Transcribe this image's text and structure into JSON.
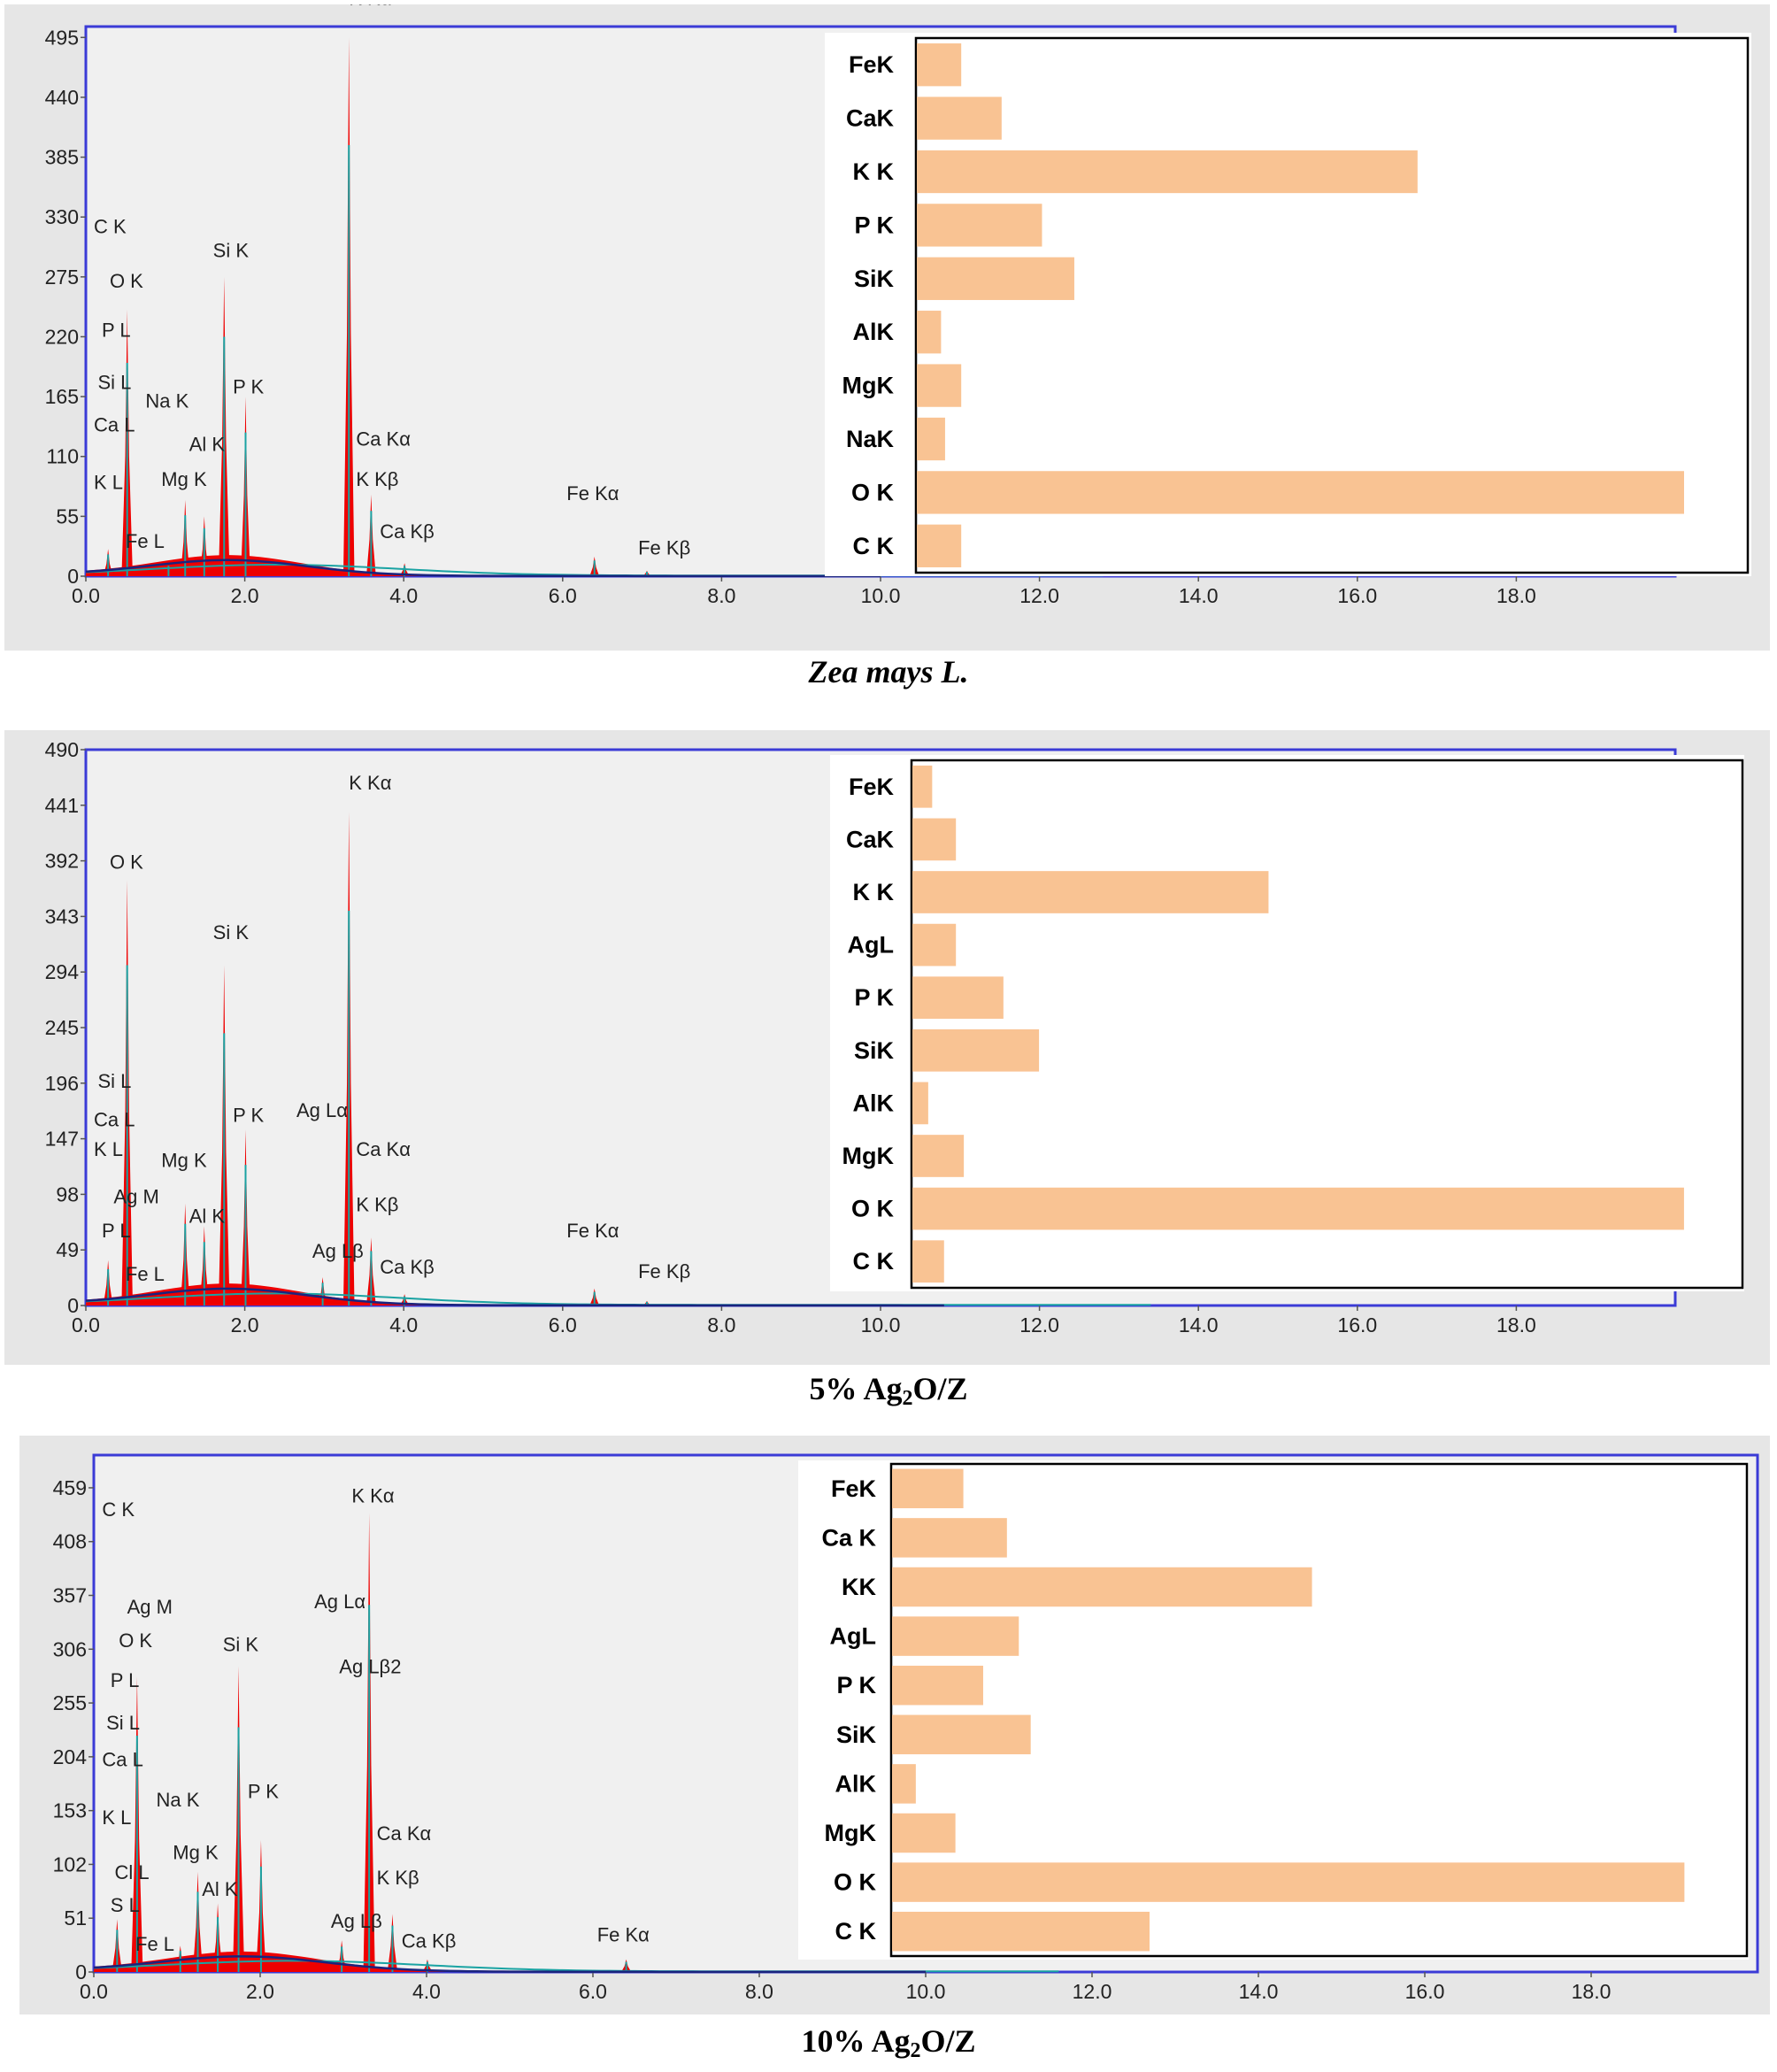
{
  "colors": {
    "accent_blue": "#3b3bd6",
    "bar_fill": "#f9c393",
    "spectrum_red": "#ee0000",
    "teal": "#1aa3a3",
    "navy": "#1a237e",
    "plot_bg": "#f0f0f0",
    "panel_bg": "#e6e6e6"
  },
  "captions": [
    {
      "text": "Zea mays L."
    },
    {
      "prefix": "5% Ag",
      "sub": "2",
      "suffix": "O/Z"
    },
    {
      "prefix": "10% Ag",
      "sub": "2",
      "suffix": "O/Z"
    }
  ],
  "chart_data": [
    {
      "type": "line",
      "title": "Zea mays L.",
      "xlabel": "",
      "ylabel": "",
      "xlim": [
        0,
        20
      ],
      "ylim": [
        0,
        505
      ],
      "x_ticks": [
        "0.0",
        "2.0",
        "4.0",
        "6.0",
        "8.0",
        "10.0",
        "12.0",
        "14.0",
        "16.0",
        "18.0"
      ],
      "y_ticks": [
        0,
        55,
        110,
        165,
        220,
        275,
        330,
        385,
        440,
        495
      ],
      "peaks": [
        {
          "x": 0.28,
          "y": 25
        },
        {
          "x": 0.52,
          "y": 245
        },
        {
          "x": 1.04,
          "y": 12
        },
        {
          "x": 1.25,
          "y": 70
        },
        {
          "x": 1.49,
          "y": 55
        },
        {
          "x": 1.74,
          "y": 275
        },
        {
          "x": 2.01,
          "y": 165
        },
        {
          "x": 3.31,
          "y": 495
        },
        {
          "x": 3.59,
          "y": 75
        },
        {
          "x": 4.01,
          "y": 12
        },
        {
          "x": 6.4,
          "y": 18
        },
        {
          "x": 7.06,
          "y": 5
        }
      ],
      "peak_labels": [
        {
          "text": "K  Kα",
          "x": 3.31,
          "y": 525
        },
        {
          "text": "C  K",
          "x": 0.1,
          "y": 315
        },
        {
          "text": "O  K",
          "x": 0.3,
          "y": 265
        },
        {
          "text": "Si K",
          "x": 1.6,
          "y": 293
        },
        {
          "text": "P  L",
          "x": 0.2,
          "y": 220
        },
        {
          "text": "Si L",
          "x": 0.15,
          "y": 172
        },
        {
          "text": "Na K",
          "x": 0.75,
          "y": 155
        },
        {
          "text": "P  K",
          "x": 1.85,
          "y": 168
        },
        {
          "text": "Ca L",
          "x": 0.1,
          "y": 133
        },
        {
          "text": "Al K",
          "x": 1.3,
          "y": 115
        },
        {
          "text": "Ca Kα",
          "x": 3.4,
          "y": 120
        },
        {
          "text": "K  L",
          "x": 0.1,
          "y": 80
        },
        {
          "text": "Mg K",
          "x": 0.95,
          "y": 83
        },
        {
          "text": "K  Kβ",
          "x": 3.4,
          "y": 83
        },
        {
          "text": "Fe Kα",
          "x": 6.05,
          "y": 70
        },
        {
          "text": "Ca Kβ",
          "x": 3.7,
          "y": 35
        },
        {
          "text": "Fe L",
          "x": 0.5,
          "y": 26
        },
        {
          "text": "Fe Kβ",
          "x": 6.95,
          "y": 20
        }
      ],
      "baseline_ends": {
        "navy": 10.0,
        "teal": 12.8
      },
      "bar_inset": {
        "type": "bar",
        "orientation": "horizontal",
        "categories": [
          "FeK",
          "CaK",
          "K K",
          "P K",
          "SiK",
          "AlK",
          "MgK",
          "NaK",
          "O K",
          "C K"
        ],
        "values": [
          0.55,
          1.05,
          6.2,
          1.55,
          1.95,
          0.3,
          0.55,
          0.35,
          9.5,
          0.55
        ],
        "xlim": [
          0,
          10.3
        ]
      }
    },
    {
      "type": "line",
      "title": "5% Ag2O/Z",
      "xlabel": "",
      "ylabel": "",
      "xlim": [
        0,
        20
      ],
      "ylim": [
        0,
        490
      ],
      "x_ticks": [
        "0.0",
        "2.0",
        "4.0",
        "6.0",
        "8.0",
        "10.0",
        "12.0",
        "14.0",
        "16.0",
        "18.0"
      ],
      "y_ticks": [
        0,
        49,
        98,
        147,
        196,
        245,
        294,
        343,
        392,
        441,
        490
      ],
      "peaks": [
        {
          "x": 0.28,
          "y": 40
        },
        {
          "x": 0.52,
          "y": 375
        },
        {
          "x": 1.25,
          "y": 90
        },
        {
          "x": 1.49,
          "y": 70
        },
        {
          "x": 1.74,
          "y": 300
        },
        {
          "x": 2.01,
          "y": 155
        },
        {
          "x": 2.98,
          "y": 25
        },
        {
          "x": 3.31,
          "y": 435
        },
        {
          "x": 3.59,
          "y": 60
        },
        {
          "x": 4.01,
          "y": 10
        },
        {
          "x": 6.4,
          "y": 15
        },
        {
          "x": 7.06,
          "y": 4
        }
      ],
      "peak_labels": [
        {
          "text": "K  Kα",
          "x": 3.31,
          "y": 455
        },
        {
          "text": "O  K",
          "x": 0.3,
          "y": 385
        },
        {
          "text": "Si K",
          "x": 1.6,
          "y": 323
        },
        {
          "text": "Si L",
          "x": 0.15,
          "y": 192
        },
        {
          "text": "Ag Lα",
          "x": 2.65,
          "y": 166
        },
        {
          "text": "P  K",
          "x": 1.85,
          "y": 162
        },
        {
          "text": "Ca L",
          "x": 0.1,
          "y": 158
        },
        {
          "text": "K  L",
          "x": 0.1,
          "y": 132
        },
        {
          "text": "Ca Kα",
          "x": 3.4,
          "y": 132
        },
        {
          "text": "Mg K",
          "x": 0.95,
          "y": 122
        },
        {
          "text": "Ag M",
          "x": 0.35,
          "y": 90
        },
        {
          "text": "K  Kβ",
          "x": 3.4,
          "y": 83
        },
        {
          "text": "Al K",
          "x": 1.3,
          "y": 73
        },
        {
          "text": "P  L",
          "x": 0.2,
          "y": 60
        },
        {
          "text": "Fe Kα",
          "x": 6.05,
          "y": 60
        },
        {
          "text": "Ag Lβ",
          "x": 2.85,
          "y": 42
        },
        {
          "text": "Ca Kβ",
          "x": 3.7,
          "y": 28
        },
        {
          "text": "Fe L",
          "x": 0.5,
          "y": 22
        },
        {
          "text": "Fe Kβ",
          "x": 6.95,
          "y": 24
        }
      ],
      "baseline_ends": {
        "navy": 10.8,
        "teal": 13.4
      },
      "bar_inset": {
        "type": "bar",
        "orientation": "horizontal",
        "categories": [
          "FeK",
          "CaK",
          "K K",
          "AgL",
          "P K",
          "SiK",
          "AlK",
          "MgK",
          "O K",
          "C K"
        ],
        "values": [
          0.25,
          0.55,
          4.5,
          0.55,
          1.15,
          1.6,
          0.2,
          0.65,
          9.75,
          0.4
        ],
        "xlim": [
          0,
          10.5
        ]
      }
    },
    {
      "type": "line",
      "title": "10% Ag2O/Z",
      "xlabel": "",
      "ylabel": "",
      "xlim": [
        0,
        20
      ],
      "ylim": [
        0,
        490
      ],
      "x_ticks": [
        "0.0",
        "2.0",
        "4.0",
        "6.0",
        "8.0",
        "10.0",
        "12.0",
        "14.0",
        "16.0",
        "18.0"
      ],
      "y_ticks": [
        0,
        51,
        102,
        153,
        204,
        255,
        306,
        357,
        408,
        459
      ],
      "peaks": [
        {
          "x": 0.28,
          "y": 50
        },
        {
          "x": 0.52,
          "y": 280
        },
        {
          "x": 1.04,
          "y": 25
        },
        {
          "x": 1.25,
          "y": 95
        },
        {
          "x": 1.49,
          "y": 65
        },
        {
          "x": 1.74,
          "y": 290
        },
        {
          "x": 2.01,
          "y": 125
        },
        {
          "x": 2.98,
          "y": 30
        },
        {
          "x": 3.31,
          "y": 435
        },
        {
          "x": 3.59,
          "y": 55
        },
        {
          "x": 4.01,
          "y": 12
        },
        {
          "x": 6.4,
          "y": 12
        }
      ],
      "peak_labels": [
        {
          "text": "C  K",
          "x": 0.1,
          "y": 432
        },
        {
          "text": "K  Kα",
          "x": 3.1,
          "y": 445
        },
        {
          "text": "Ag M",
          "x": 0.4,
          "y": 340
        },
        {
          "text": "Ag Lα",
          "x": 2.65,
          "y": 345
        },
        {
          "text": "O  K",
          "x": 0.3,
          "y": 308
        },
        {
          "text": "Si K",
          "x": 1.55,
          "y": 304
        },
        {
          "text": "Ag Lβ2",
          "x": 2.95,
          "y": 283
        },
        {
          "text": "P  L",
          "x": 0.2,
          "y": 270
        },
        {
          "text": "Si L",
          "x": 0.15,
          "y": 230
        },
        {
          "text": "Ca L",
          "x": 0.1,
          "y": 195
        },
        {
          "text": "P  K",
          "x": 1.85,
          "y": 165
        },
        {
          "text": "Na K",
          "x": 0.75,
          "y": 157
        },
        {
          "text": "K  L",
          "x": 0.1,
          "y": 140
        },
        {
          "text": "Ca Kα",
          "x": 3.4,
          "y": 125
        },
        {
          "text": "Mg K",
          "x": 0.95,
          "y": 107
        },
        {
          "text": "Cl L",
          "x": 0.25,
          "y": 88
        },
        {
          "text": "K  Kβ",
          "x": 3.4,
          "y": 83
        },
        {
          "text": "Al K",
          "x": 1.3,
          "y": 72
        },
        {
          "text": "S  L",
          "x": 0.2,
          "y": 57
        },
        {
          "text": "Ag Lβ",
          "x": 2.85,
          "y": 42
        },
        {
          "text": "Fe Kα",
          "x": 6.05,
          "y": 29
        },
        {
          "text": "Fe L",
          "x": 0.5,
          "y": 20
        },
        {
          "text": "Ca Kβ",
          "x": 3.7,
          "y": 23
        }
      ],
      "baseline_ends": {
        "navy": 10.0,
        "teal": 11.6
      },
      "bar_inset": {
        "type": "bar",
        "orientation": "horizontal",
        "categories": [
          "FeK",
          "Ca K",
          "KK",
          "AgL",
          "P K",
          "SiK",
          "AlK",
          "MgK",
          "O K",
          "C K"
        ],
        "values": [
          0.9,
          1.45,
          5.3,
          1.6,
          1.15,
          1.75,
          0.3,
          0.8,
          10.0,
          3.25
        ],
        "xlim": [
          0,
          10.8
        ]
      }
    }
  ]
}
